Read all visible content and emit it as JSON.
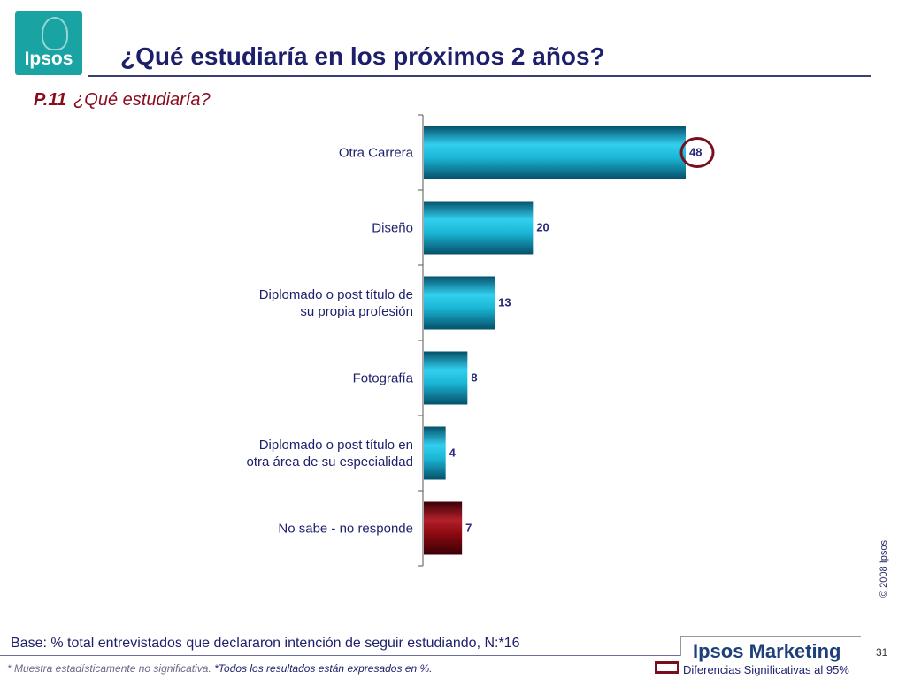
{
  "header": {
    "logo_text": "Ipsos",
    "title": "¿Qué estudiaría en los próximos 2 años?"
  },
  "question": {
    "code": "P.11",
    "text": "¿Qué estudiaría?"
  },
  "chart_data": {
    "type": "bar",
    "orientation": "horizontal",
    "categories": [
      "Otra Carrera",
      "Diseño",
      "Diplomado o post título de su propia profesión",
      "Fotografía",
      "Diplomado o post título en otra área de su especialidad",
      "No sabe - no responde"
    ],
    "category_lines": [
      [
        "Otra Carrera"
      ],
      [
        "Diseño"
      ],
      [
        "Diplomado o post título de",
        "su propia profesión"
      ],
      [
        "Fotografía"
      ],
      [
        "Diplomado o post título en",
        "otra área de su especialidad"
      ],
      [
        "No sabe - no responde"
      ]
    ],
    "values": [
      48,
      20,
      13,
      8,
      4,
      7
    ],
    "data_labels": [
      "48",
      "20",
      "13",
      "8",
      "4",
      "7"
    ],
    "bar_colors": [
      "#1bb6d6",
      "#1bb6d6",
      "#1bb6d6",
      "#1bb6d6",
      "#1bb6d6",
      "#8b0a10"
    ],
    "highlighted_index": 0,
    "highlight_color": "#7a0d1f",
    "label_color": "#2a2a7a",
    "xlim": [
      0,
      50
    ],
    "grid": false
  },
  "footer": {
    "copyright": "© 2008 Ipsos",
    "base": "Base: % total entrevistados que declararon intención de seguir estudiando, N:*16",
    "brand": "Ipsos Marketing",
    "page_number": "31",
    "footnote_sample": "* Muestra estadísticamente no significativa.",
    "footnote_results": "*Todos los resultados están expresados en %.",
    "legend_text": "Diferencias Significativas al 95%"
  }
}
